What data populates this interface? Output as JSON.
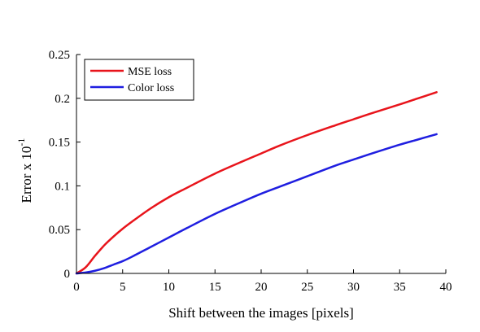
{
  "chart_data": {
    "type": "line",
    "title": "",
    "xlabel": "Shift between the images [pixels]",
    "ylabel_base": "Error x 10",
    "ylabel_exponent": "-1",
    "xlim": [
      0,
      40
    ],
    "ylim": [
      0,
      0.25
    ],
    "xticks": [
      0,
      5,
      10,
      15,
      20,
      25,
      30,
      35,
      40
    ],
    "xtick_labels": [
      "0",
      "5",
      "10",
      "15",
      "20",
      "25",
      "30",
      "35",
      "40"
    ],
    "yticks": [
      0,
      0.05,
      0.1,
      0.15,
      0.2,
      0.25
    ],
    "ytick_labels": [
      "0",
      "0.05",
      "0.1",
      "0.15",
      "0.2",
      "0.25"
    ],
    "grid": false,
    "legend_position": "top-left",
    "series": [
      {
        "name": "MSE loss",
        "color": "#e8141b",
        "x": [
          0,
          1,
          2,
          3,
          4,
          5,
          6,
          8,
          10,
          12,
          15,
          18,
          20,
          22,
          25,
          28,
          30,
          32,
          35,
          37,
          39
        ],
        "y": [
          0,
          0.007,
          0.02,
          0.032,
          0.042,
          0.051,
          0.059,
          0.074,
          0.087,
          0.098,
          0.114,
          0.128,
          0.137,
          0.146,
          0.158,
          0.169,
          0.176,
          0.183,
          0.193,
          0.2,
          0.207
        ]
      },
      {
        "name": "Color loss",
        "color": "#1f1ee0",
        "x": [
          0,
          1,
          2,
          3,
          4,
          5,
          6,
          8,
          10,
          12,
          15,
          18,
          20,
          22,
          25,
          28,
          30,
          32,
          35,
          37,
          39
        ],
        "y": [
          0,
          0.001,
          0.003,
          0.006,
          0.01,
          0.014,
          0.019,
          0.03,
          0.041,
          0.052,
          0.068,
          0.082,
          0.091,
          0.099,
          0.111,
          0.123,
          0.13,
          0.137,
          0.147,
          0.153,
          0.159
        ]
      }
    ]
  }
}
